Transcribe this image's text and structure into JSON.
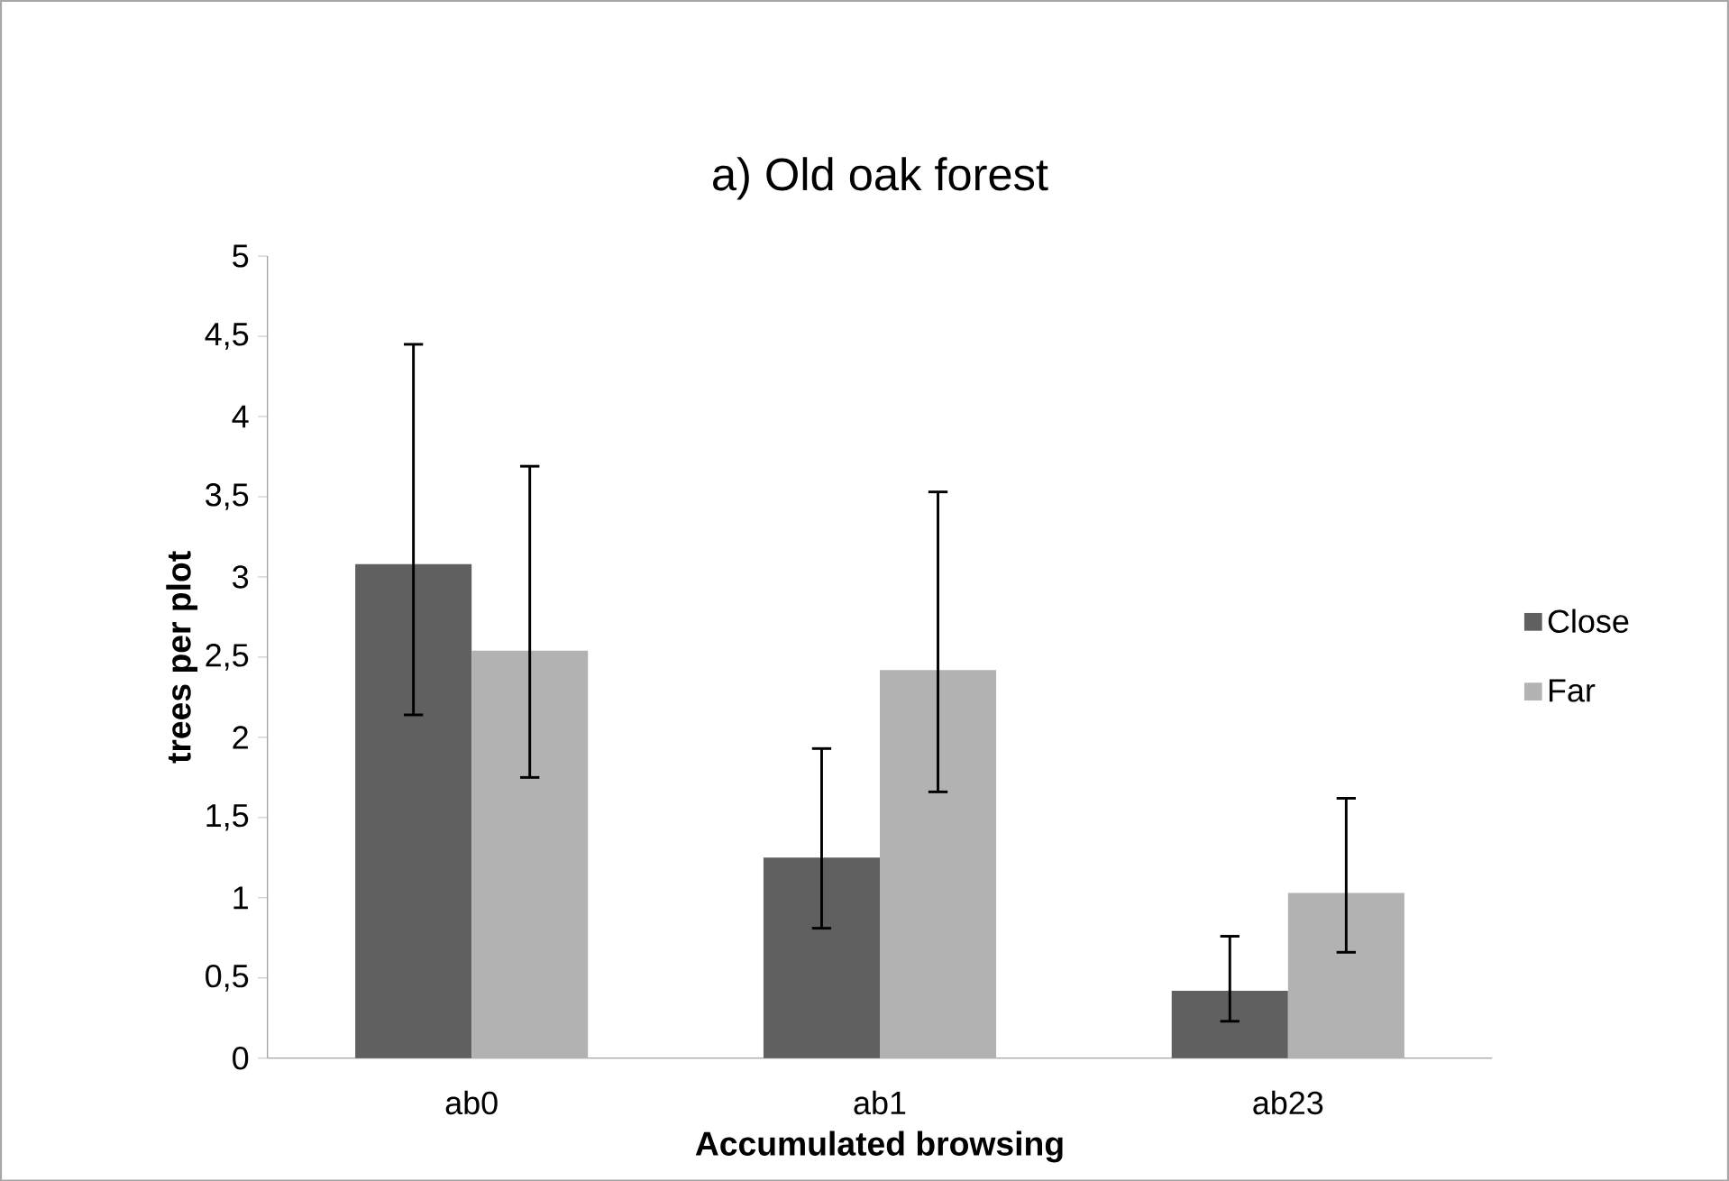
{
  "chart_data": {
    "type": "bar",
    "title": "a) Old oak forest",
    "xlabel": "Accumulated browsing",
    "ylabel": "trees per plot",
    "categories": [
      "ab0",
      "ab1",
      "ab23"
    ],
    "series": [
      {
        "name": "Close",
        "color": "#606060",
        "values": [
          3.08,
          1.25,
          0.42
        ],
        "errors": [
          [
            2.14,
            4.45
          ],
          [
            0.81,
            1.93
          ],
          [
            0.23,
            0.76
          ]
        ]
      },
      {
        "name": "Far",
        "color": "#b2b2b2",
        "values": [
          2.54,
          2.42,
          1.03
        ],
        "errors": [
          [
            1.75,
            3.69
          ],
          [
            1.66,
            3.53
          ],
          [
            0.66,
            1.62
          ]
        ]
      }
    ],
    "ylim": [
      0,
      5
    ],
    "yticks": [
      0,
      {
        "value": 0.5,
        "label": "0,5"
      },
      1,
      {
        "value": 1.5,
        "label": "1,5"
      },
      2,
      {
        "value": 2.5,
        "label": "2,5"
      },
      3,
      {
        "value": 3.5,
        "label": "3,5"
      },
      4,
      {
        "value": 4.5,
        "label": "4,5"
      },
      5
    ],
    "grid": false,
    "legend": "right"
  }
}
